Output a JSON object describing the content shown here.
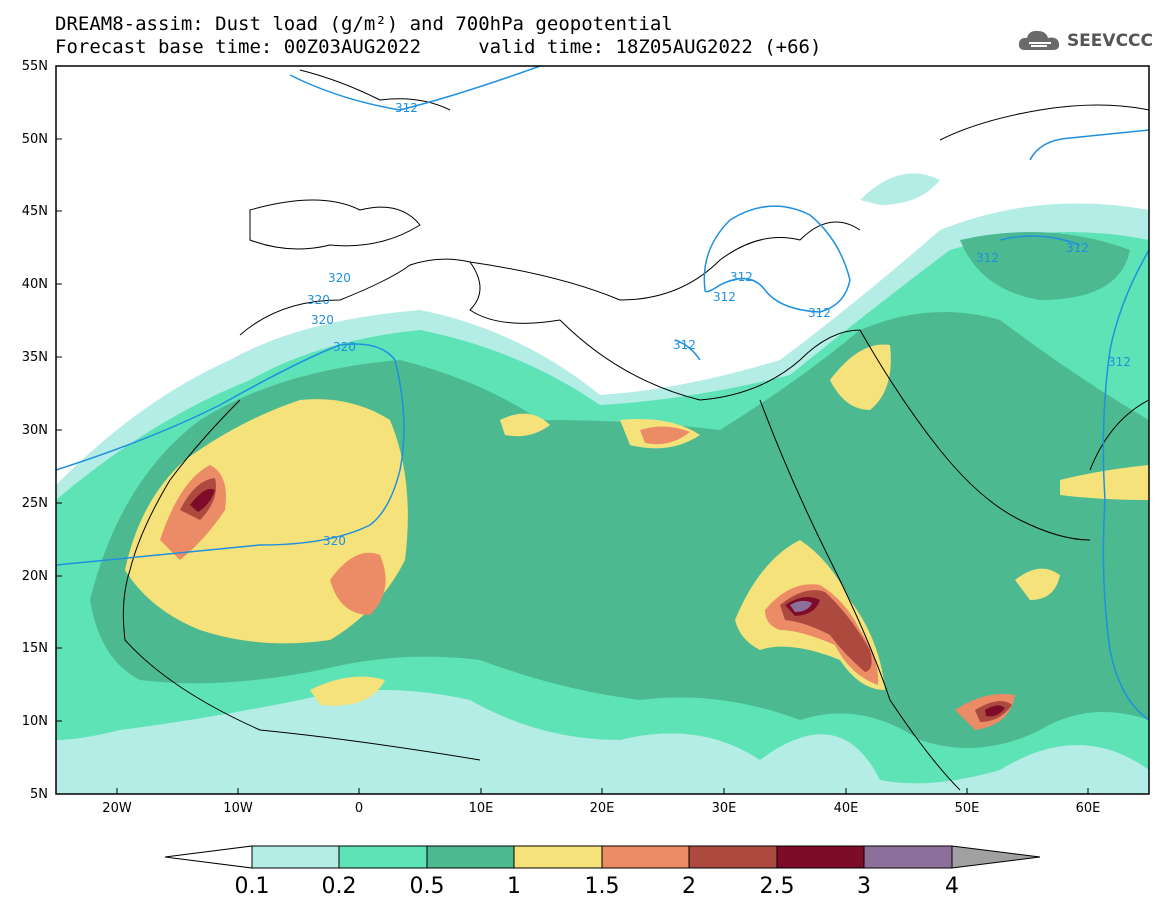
{
  "header": {
    "title_line1": "DREAM8-assim: Dust load (g/m²) and 700hPa geopotential",
    "title_line2": "Forecast base time: 00Z03AUG2022     valid time: 18Z05AUG2022 (+66)",
    "brand": "SEEVCCC"
  },
  "map": {
    "lat_labels": [
      "55N",
      "50N",
      "45N",
      "40N",
      "35N",
      "30N",
      "25N",
      "20N",
      "15N",
      "10N",
      "5N"
    ],
    "lon_labels": [
      "20W",
      "10W",
      "0",
      "10E",
      "20E",
      "30E",
      "40E",
      "50E",
      "60E"
    ],
    "contour_labels": [
      "312",
      "320",
      "320",
      "320",
      "320",
      "320",
      "312",
      "312",
      "312",
      "312",
      "312",
      "312",
      "312"
    ]
  },
  "colorbar": {
    "levels": [
      "0.1",
      "0.2",
      "0.5",
      "1",
      "1.5",
      "2",
      "2.5",
      "3",
      "4"
    ],
    "colors": [
      "#b4ede5",
      "#5ee3b7",
      "#4cb991",
      "#f5e27a",
      "#ec8c66",
      "#ad4a3f",
      "#7e0b27",
      "#8c6f9a",
      "#a0a0a0"
    ]
  }
}
